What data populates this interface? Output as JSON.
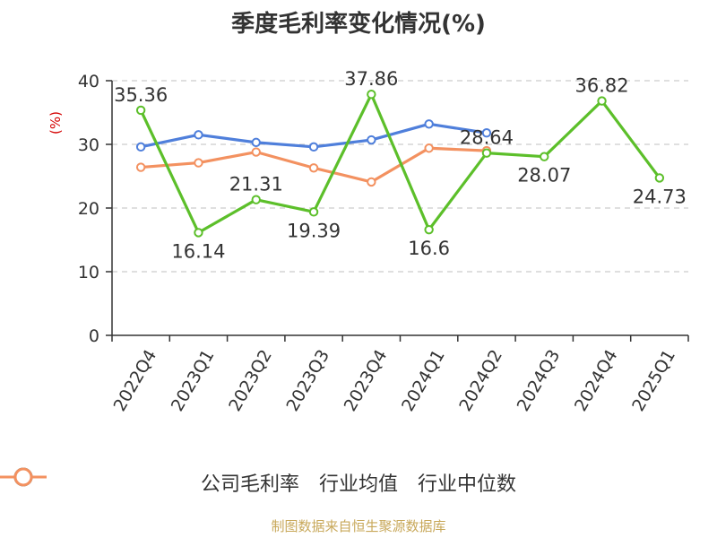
{
  "title": "季度毛利率变化情况(%)",
  "source": "制图数据来自恒生聚源数据库",
  "colors": {
    "gross_margin": "#5cbf2a",
    "industry_avg": "#4f7fdb",
    "industry_median": "#f39160",
    "grid": "#cccccc",
    "axis": "#333333",
    "y_unit": "#d40000"
  },
  "chart_data": {
    "type": "line",
    "title": "季度毛利率变化情况(%)",
    "ylabel": "(%)",
    "xlabel": "",
    "ylim": [
      0,
      40
    ],
    "yticks": [
      0,
      10,
      20,
      30,
      40
    ],
    "grid": true,
    "legend": "bottom",
    "categories": [
      "2022Q4",
      "2023Q1",
      "2023Q2",
      "2023Q3",
      "2023Q4",
      "2024Q1",
      "2024Q2",
      "2024Q3",
      "2024Q4",
      "2025Q1"
    ],
    "series": [
      {
        "name": "公司毛利率",
        "color": "#5cbf2a",
        "values": [
          35.36,
          16.14,
          21.31,
          19.39,
          37.86,
          16.6,
          28.64,
          28.07,
          36.82,
          24.73
        ],
        "labels": [
          "35.36",
          "16.14",
          "21.31",
          "19.39",
          "37.86",
          "16.6",
          "28.64",
          "28.07",
          "36.82",
          "24.73"
        ]
      },
      {
        "name": "行业均值",
        "color": "#4f7fdb",
        "values": [
          29.6,
          31.5,
          30.3,
          29.6,
          30.7,
          33.2,
          31.8,
          null,
          null,
          null
        ]
      },
      {
        "name": "行业中位数",
        "color": "#f39160",
        "values": [
          26.4,
          27.1,
          28.8,
          26.3,
          24.1,
          29.4,
          29.0,
          null,
          null,
          null
        ]
      }
    ]
  }
}
